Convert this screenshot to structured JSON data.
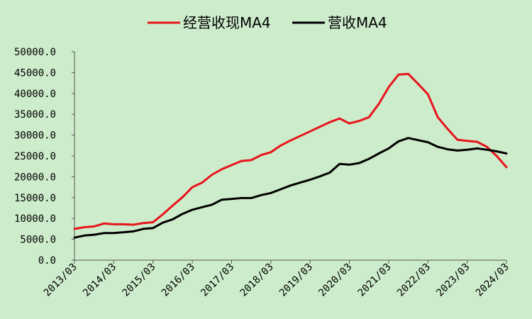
{
  "chart_data": {
    "type": "line",
    "title": "",
    "xlabel": "",
    "ylabel": "",
    "ylim": [
      0,
      50000
    ],
    "yticks": [
      0,
      5000,
      10000,
      15000,
      20000,
      25000,
      30000,
      35000,
      40000,
      45000,
      50000
    ],
    "ytick_labels": [
      "0.0",
      "5000.0",
      "10000.0",
      "15000.0",
      "20000.0",
      "25000.0",
      "30000.0",
      "35000.0",
      "40000.0",
      "45000.0",
      "50000.0"
    ],
    "xtick_labels": [
      "2013/03",
      "2014/03",
      "2015/03",
      "2016/03",
      "2017/03",
      "2018/03",
      "2019/03",
      "2020/03",
      "2021/03",
      "2022/03",
      "2023/03",
      "2024/03"
    ],
    "x": [
      "2013/03",
      "2013/06",
      "2013/09",
      "2013/12",
      "2014/03",
      "2014/06",
      "2014/09",
      "2014/12",
      "2015/03",
      "2015/06",
      "2015/09",
      "2015/12",
      "2016/03",
      "2016/06",
      "2016/09",
      "2016/12",
      "2017/03",
      "2017/06",
      "2017/09",
      "2017/12",
      "2018/03",
      "2018/06",
      "2018/09",
      "2018/12",
      "2019/03",
      "2019/06",
      "2019/09",
      "2019/12",
      "2020/03",
      "2020/06",
      "2020/09",
      "2020/12",
      "2021/03",
      "2021/06",
      "2021/09",
      "2021/12",
      "2022/03",
      "2022/06",
      "2022/09",
      "2022/12",
      "2023/03",
      "2023/06",
      "2023/09",
      "2023/12",
      "2024/03"
    ],
    "grid": false,
    "legend_position": "top",
    "series": [
      {
        "name": "经营收现MA4",
        "color": "#e8141b",
        "values": [
          7500,
          7900,
          8100,
          8800,
          8600,
          8600,
          8500,
          8900,
          9100,
          11000,
          13100,
          15100,
          17500,
          18600,
          20500,
          21800,
          22800,
          23800,
          24000,
          25200,
          25900,
          27500,
          28700,
          29800,
          30900,
          32000,
          33100,
          34000,
          32800,
          33400,
          34300,
          37500,
          41500,
          44500,
          44700,
          42300,
          39800,
          34300,
          31500,
          28900,
          28600,
          28400,
          27200,
          25000,
          22300
        ]
      },
      {
        "name": "营收MA4",
        "color": "#000000",
        "values": [
          5400,
          5900,
          6100,
          6500,
          6500,
          6700,
          6900,
          7500,
          7700,
          9000,
          9800,
          11100,
          12100,
          12700,
          13300,
          14500,
          14700,
          14900,
          14900,
          15600,
          16100,
          17000,
          17900,
          18600,
          19300,
          20100,
          21000,
          23100,
          22900,
          23300,
          24300,
          25600,
          26800,
          28500,
          29300,
          28800,
          28300,
          27200,
          26600,
          26300,
          26500,
          26800,
          26500,
          26100,
          25600
        ]
      }
    ]
  }
}
